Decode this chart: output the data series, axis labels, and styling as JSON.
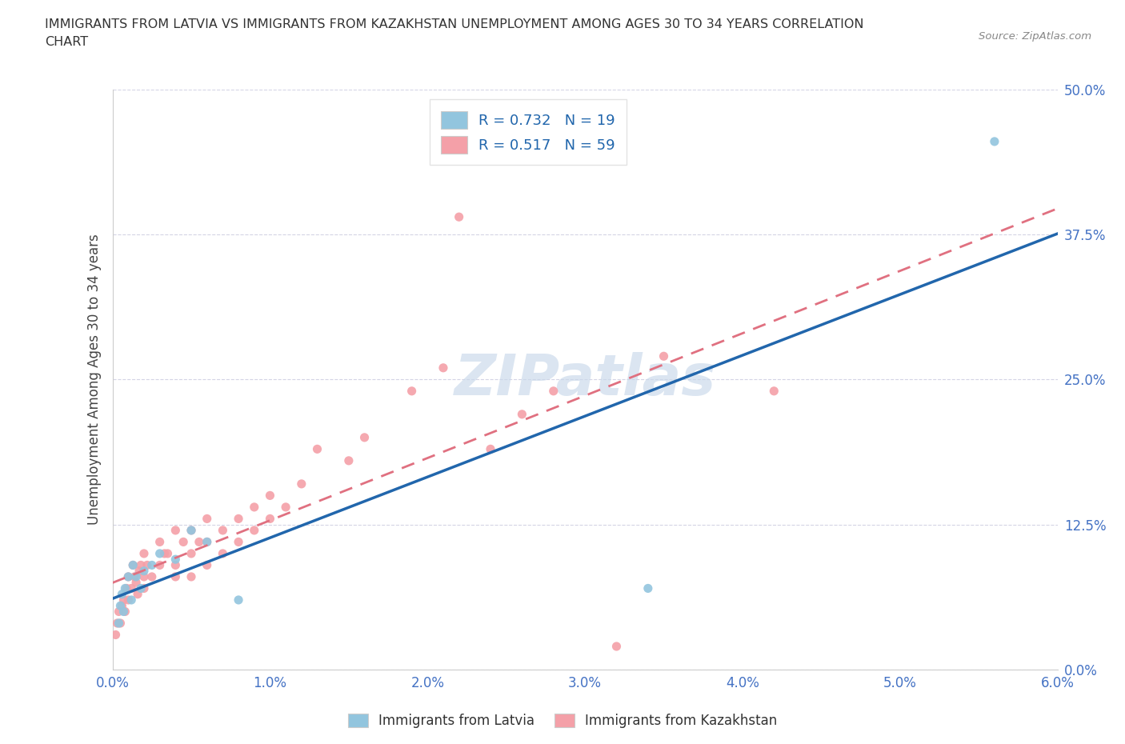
{
  "title_line1": "IMMIGRANTS FROM LATVIA VS IMMIGRANTS FROM KAZAKHSTAN UNEMPLOYMENT AMONG AGES 30 TO 34 YEARS CORRELATION",
  "title_line2": "CHART",
  "source": "Source: ZipAtlas.com",
  "ylabel": "Unemployment Among Ages 30 to 34 years",
  "legend_latvia": "Immigrants from Latvia",
  "legend_kazakhstan": "Immigrants from Kazakhstan",
  "R_latvia": 0.732,
  "N_latvia": 19,
  "R_kazakhstan": 0.517,
  "N_kazakhstan": 59,
  "xlim": [
    0.0,
    0.06
  ],
  "ylim": [
    0.0,
    0.5
  ],
  "xticks": [
    0.0,
    0.01,
    0.02,
    0.03,
    0.04,
    0.05,
    0.06
  ],
  "yticks": [
    0.0,
    0.125,
    0.25,
    0.375,
    0.5
  ],
  "xtick_labels": [
    "0.0%",
    "1.0%",
    "2.0%",
    "3.0%",
    "4.0%",
    "5.0%",
    "6.0%"
  ],
  "ytick_labels": [
    "0.0%",
    "12.5%",
    "25.0%",
    "37.5%",
    "50.0%"
  ],
  "color_latvia": "#92C5DE",
  "color_kazakhstan": "#F4A0A8",
  "line_color_latvia": "#2166AC",
  "line_color_kazakhstan": "#E07080",
  "watermark": "ZIPatlas",
  "watermark_color": "#C8D8EA",
  "lat_x": [
    0.0004,
    0.0005,
    0.0006,
    0.0007,
    0.0008,
    0.001,
    0.0012,
    0.0013,
    0.0015,
    0.0018,
    0.002,
    0.0025,
    0.003,
    0.004,
    0.005,
    0.006,
    0.008,
    0.034,
    0.056
  ],
  "lat_y": [
    0.04,
    0.055,
    0.065,
    0.05,
    0.07,
    0.08,
    0.06,
    0.09,
    0.08,
    0.07,
    0.085,
    0.09,
    0.1,
    0.095,
    0.12,
    0.11,
    0.06,
    0.07,
    0.455
  ],
  "kaz_x": [
    0.0002,
    0.0003,
    0.0004,
    0.0005,
    0.0006,
    0.0007,
    0.0008,
    0.0009,
    0.001,
    0.001,
    0.0012,
    0.0013,
    0.0014,
    0.0015,
    0.0016,
    0.0017,
    0.0018,
    0.002,
    0.002,
    0.002,
    0.0022,
    0.0025,
    0.003,
    0.003,
    0.0033,
    0.0035,
    0.004,
    0.004,
    0.004,
    0.0045,
    0.005,
    0.005,
    0.005,
    0.0055,
    0.006,
    0.006,
    0.006,
    0.007,
    0.007,
    0.008,
    0.008,
    0.009,
    0.009,
    0.01,
    0.01,
    0.011,
    0.012,
    0.013,
    0.015,
    0.016,
    0.019,
    0.021,
    0.022,
    0.024,
    0.026,
    0.028,
    0.032,
    0.035,
    0.042
  ],
  "kaz_y": [
    0.03,
    0.04,
    0.05,
    0.04,
    0.055,
    0.06,
    0.05,
    0.07,
    0.06,
    0.08,
    0.07,
    0.09,
    0.08,
    0.075,
    0.065,
    0.085,
    0.09,
    0.07,
    0.08,
    0.1,
    0.09,
    0.08,
    0.09,
    0.11,
    0.1,
    0.1,
    0.08,
    0.09,
    0.12,
    0.11,
    0.1,
    0.08,
    0.12,
    0.11,
    0.09,
    0.11,
    0.13,
    0.1,
    0.12,
    0.11,
    0.13,
    0.12,
    0.14,
    0.13,
    0.15,
    0.14,
    0.16,
    0.19,
    0.18,
    0.2,
    0.24,
    0.26,
    0.39,
    0.19,
    0.22,
    0.24,
    0.02,
    0.27,
    0.24
  ]
}
